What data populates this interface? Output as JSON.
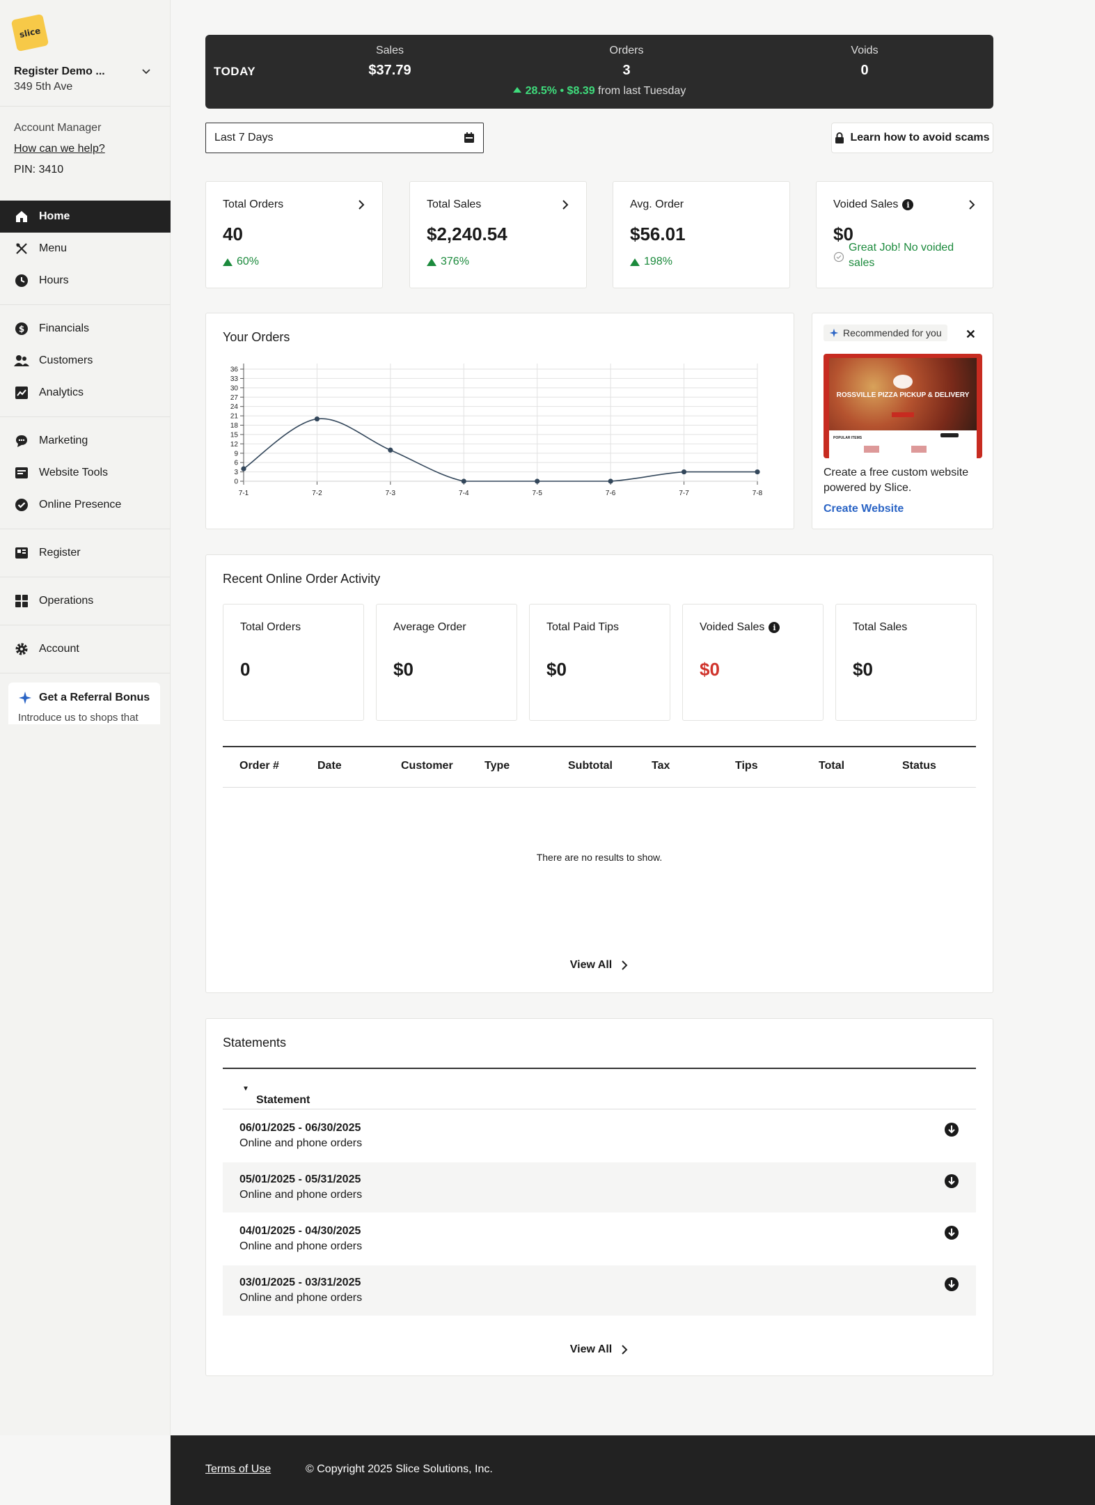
{
  "sidebar": {
    "logo_text": "slice",
    "store_name": "Register Demo ...",
    "store_address": "349 5th Ave",
    "account_manager": "Account Manager",
    "help_link": "How can we help?",
    "pin": "PIN: 3410",
    "nav": [
      {
        "label": "Home",
        "icon": "home-icon",
        "active": true
      },
      {
        "label": "Menu",
        "icon": "utensils-icon"
      },
      {
        "label": "Hours",
        "icon": "clock-icon"
      },
      {
        "label": "Financials",
        "icon": "dollar-icon"
      },
      {
        "label": "Customers",
        "icon": "users-icon"
      },
      {
        "label": "Analytics",
        "icon": "chart-icon"
      },
      {
        "label": "Marketing",
        "icon": "chat-icon"
      },
      {
        "label": "Website Tools",
        "icon": "website-icon"
      },
      {
        "label": "Online Presence",
        "icon": "check-badge-icon"
      },
      {
        "label": "Register",
        "icon": "register-icon"
      },
      {
        "label": "Operations",
        "icon": "operations-icon"
      },
      {
        "label": "Account",
        "icon": "gear-icon"
      }
    ],
    "referral": {
      "title": "Get a Referral Bonus",
      "subtitle": "Introduce us to shops that"
    }
  },
  "today": {
    "label": "TODAY",
    "sales_label": "Sales",
    "sales_value": "$37.79",
    "orders_label": "Orders",
    "orders_value": "3",
    "voids_label": "Voids",
    "voids_value": "0",
    "trend_pct": "28.5%",
    "trend_sep": "•",
    "trend_amt": "$8.39",
    "trend_text": "from last Tuesday"
  },
  "filter": {
    "range": "Last 7 Days",
    "scam_button": "Learn how to avoid scams"
  },
  "stats": [
    {
      "label": "Total Orders",
      "value": "40",
      "change": "60%"
    },
    {
      "label": "Total Sales",
      "value": "$2,240.54",
      "change": "376%"
    },
    {
      "label": "Avg. Order",
      "value": "$56.01",
      "change": "198%"
    },
    {
      "label": "Voided Sales",
      "value": "$0",
      "note": "Great Job! No voided sales"
    }
  ],
  "orders_chart": {
    "title": "Your Orders"
  },
  "chart_data": {
    "type": "line",
    "title": "Your Orders",
    "x": [
      "7-1",
      "7-2",
      "7-3",
      "7-4",
      "7-5",
      "7-6",
      "7-7",
      "7-8"
    ],
    "y": [
      4,
      20,
      10,
      0,
      0,
      0,
      3,
      3
    ],
    "yticks": [
      0,
      3,
      6,
      9,
      12,
      15,
      18,
      21,
      24,
      27,
      30,
      33,
      36
    ],
    "ylim": [
      0,
      36
    ],
    "grid": true,
    "line_color": "#33475b"
  },
  "recommended": {
    "tag": "Recommended for you",
    "close": "✕",
    "hero_text": "ROSSVILLE PIZZA PICKUP & DELIVERY",
    "popular": "POPULAR ITEMS",
    "description": "Create a free custom website powered by Slice.",
    "link": "Create Website"
  },
  "recent": {
    "title": "Recent Online Order Activity",
    "cards": [
      {
        "label": "Total Orders",
        "value": "0"
      },
      {
        "label": "Average Order",
        "value": "$0"
      },
      {
        "label": "Total Paid Tips",
        "value": "$0"
      },
      {
        "label": "Voided Sales",
        "value": "$0"
      },
      {
        "label": "Total Sales",
        "value": "$0"
      }
    ],
    "columns": [
      "Order #",
      "Date",
      "Customer",
      "Type",
      "Subtotal",
      "Tax",
      "Tips",
      "Total",
      "Status"
    ],
    "empty": "There are no results to show.",
    "view_all": "View All"
  },
  "statements": {
    "title": "Statements",
    "column": "Statement",
    "sort_icon": "▼",
    "rows": [
      {
        "dates": "06/01/2025 - 06/30/2025",
        "sub": "Online and phone orders"
      },
      {
        "dates": "05/01/2025 - 05/31/2025",
        "sub": "Online and phone orders"
      },
      {
        "dates": "04/01/2025 - 04/30/2025",
        "sub": "Online and phone orders"
      },
      {
        "dates": "03/01/2025 - 03/31/2025",
        "sub": "Online and phone orders"
      }
    ],
    "view_all": "View All"
  },
  "footer": {
    "terms": "Terms of Use",
    "copyright": "© Copyright 2025 Slice Solutions, Inc."
  },
  "colors": {
    "accent_green": "#1b8a3c",
    "trend_green": "#3fdc7c",
    "link_blue": "#2a64c5",
    "danger_red": "#d0342c",
    "dark": "#2b2b2b"
  }
}
